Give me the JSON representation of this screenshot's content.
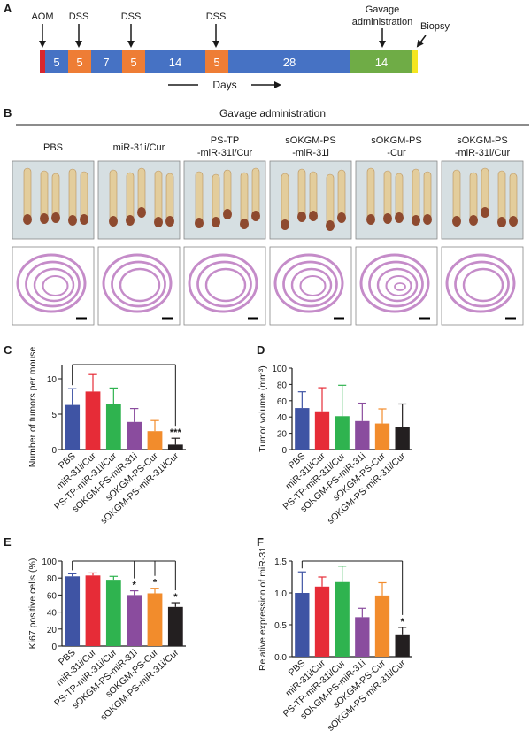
{
  "panel_labels": {
    "a": "A",
    "b": "B",
    "c": "C",
    "d": "D",
    "e": "E",
    "f": "F"
  },
  "timeline": {
    "events": {
      "aom": "AOM",
      "dss1": "DSS",
      "dss2": "DSS",
      "dss3": "DSS",
      "gavage_l1": "Gavage",
      "gavage_l2": "administration",
      "biopsy": "Biopsy"
    },
    "segments": [
      "5",
      "5",
      "7",
      "5",
      "14",
      "5",
      "28",
      "14"
    ],
    "days_label": "Days",
    "colors": {
      "aom": "#d7262e",
      "water": "#4672c4",
      "dss": "#ee7d35",
      "gavage": "#6fac46",
      "biopsy": "#f5e620"
    }
  },
  "groups_header": "Gavage administration",
  "groups": [
    {
      "l1": "PBS",
      "l2": ""
    },
    {
      "l1": "miR-31i/Cur",
      "l2": ""
    },
    {
      "l1": "PS-TP",
      "l2": "-miR-31i/Cur"
    },
    {
      "l1": "sOKGM-PS",
      "l2": "-miR-31i"
    },
    {
      "l1": "sOKGM-PS",
      "l2": "-Cur"
    },
    {
      "l1": "sOKGM-PS",
      "l2": "-miR-31i/Cur"
    }
  ],
  "series_colors": [
    "#3f54a4",
    "#e62c37",
    "#2fb34f",
    "#8a4c9e",
    "#f28c2c",
    "#231f20"
  ],
  "chart_data": [
    {
      "type": "bar",
      "panel": "C",
      "ylabel": "Number of tumors per mouse",
      "ylim": [
        0,
        12
      ],
      "yticks": [
        0,
        5,
        10
      ],
      "categories": [
        "PBS",
        "miR-31i/Cur",
        "PS-TP-miR-31i/Cur",
        "sOKGM-PS-miR-31i",
        "sOKGM-PS-Cur",
        "sOKGM-PS-miR-31i/Cur"
      ],
      "values": [
        6.3,
        8.2,
        6.5,
        3.9,
        2.6,
        0.7
      ],
      "errors": [
        2.3,
        2.4,
        2.2,
        1.9,
        1.5,
        0.9
      ],
      "sig": [
        "",
        "",
        "",
        "",
        "",
        "***"
      ]
    },
    {
      "type": "bar",
      "panel": "D",
      "ylabel": "Tumor volume (mm³)",
      "ylim": [
        0,
        100
      ],
      "yticks": [
        0,
        20,
        40,
        60,
        80,
        100
      ],
      "categories": [
        "PBS",
        "miR-31i/Cur",
        "PS-TP-miR-31i/Cur",
        "sOKGM-PS-miR-31i",
        "sOKGM-PS-Cur",
        "sOKGM-PS-miR-31i/Cur"
      ],
      "values": [
        51,
        47,
        41,
        35,
        32,
        28
      ],
      "errors": [
        20,
        29,
        38,
        22,
        18,
        28
      ],
      "sig": [
        "",
        "",
        "",
        "",
        "",
        ""
      ]
    },
    {
      "type": "bar",
      "panel": "E",
      "ylabel": "Ki67 positive cells (%)",
      "ylim": [
        0,
        100
      ],
      "yticks": [
        0,
        20,
        40,
        60,
        80,
        100
      ],
      "categories": [
        "PBS",
        "miR-31i/Cur",
        "PS-TP-miR-31i/Cur",
        "sOKGM-PS-miR-31i",
        "sOKGM-PS-Cur",
        "sOKGM-PS-miR-31i/Cur"
      ],
      "values": [
        82,
        83,
        78,
        60,
        62,
        46
      ],
      "errors": [
        3,
        3,
        4,
        5,
        6,
        5
      ],
      "sig": [
        "",
        "",
        "",
        "*",
        "*",
        "*"
      ]
    },
    {
      "type": "bar",
      "panel": "F",
      "ylabel": "Relative expression of miR-31",
      "ylim": [
        0,
        1.5
      ],
      "yticks": [
        "0.0",
        "0.5",
        "1.0",
        "1.5"
      ],
      "categories": [
        "PBS",
        "miR-31i/Cur",
        "PS-TP-miR-31i/Cur",
        "sOKGM-PS-miR-31i",
        "sOKGM-PS-Cur",
        "sOKGM-PS-miR-31i/Cur"
      ],
      "values": [
        1.0,
        1.1,
        1.17,
        0.62,
        0.96,
        0.35
      ],
      "errors": [
        0.33,
        0.15,
        0.25,
        0.14,
        0.2,
        0.11
      ],
      "sig": [
        "",
        "",
        "",
        "",
        "",
        "*"
      ]
    }
  ]
}
